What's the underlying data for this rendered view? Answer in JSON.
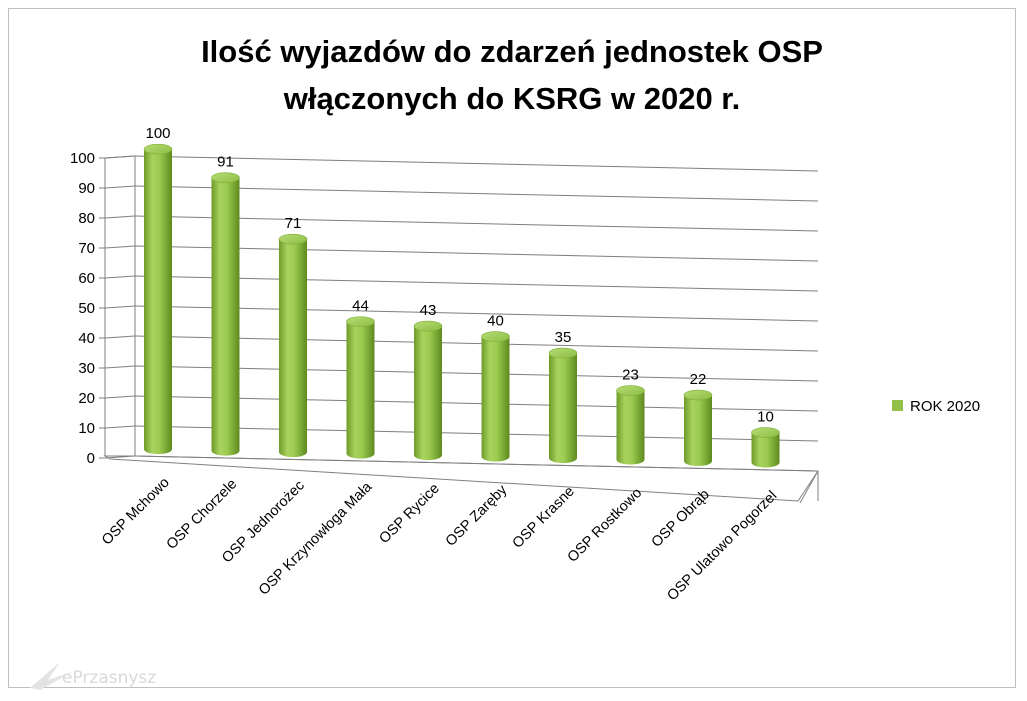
{
  "chart_data": {
    "type": "bar",
    "style": "3d-cylinder",
    "title": "Ilość wyjazdów do zdarzeń jednostek OSP włączonych do KSRG w 2020 r.",
    "title_lines": [
      "Ilość wyjazdów do zdarzeń jednostek OSP",
      "włączonych do KSRG w 2020 r."
    ],
    "xlabel": "",
    "ylabel": "",
    "ylim": [
      0,
      100
    ],
    "yticks": [
      0,
      10,
      20,
      30,
      40,
      50,
      60,
      70,
      80,
      90,
      100
    ],
    "grid": true,
    "legend_position": "right",
    "categories": [
      "OSP Mchowo",
      "OSP Chorzele",
      "OSP Jednorożec",
      "OSP Krzynowłoga Mała",
      "OSP Rycice",
      "OSP Zaręby",
      "OSP Krasne",
      "OSP Rostkowo",
      "OSP Obrąb",
      "OSP Ulatowo Pogorzel"
    ],
    "series": [
      {
        "name": "ROK 2020",
        "color": "#92c04a",
        "values": [
          100,
          91,
          71,
          44,
          43,
          40,
          35,
          23,
          22,
          10
        ]
      }
    ],
    "data_labels": [
      "100",
      "91",
      "71",
      "44",
      "43",
      "40",
      "35",
      "23",
      "22",
      "10"
    ]
  },
  "watermark": "ePrzasnysz"
}
